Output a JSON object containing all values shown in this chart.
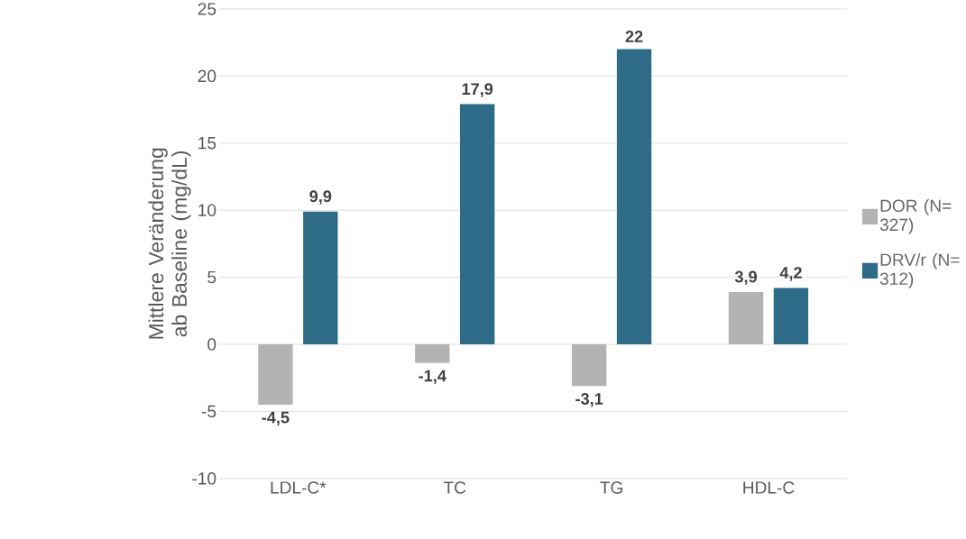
{
  "chart_data": {
    "type": "bar",
    "ylabel": "Mittlere Veränderung ab Baseline (mg/dL)",
    "categories": [
      "LDL-C*",
      "TC",
      "TG",
      "HDL-C"
    ],
    "series": [
      {
        "name": "DOR (N= 327)",
        "color": "#b3b3b3",
        "values": [
          -4.5,
          -1.4,
          -3.1,
          3.9
        ],
        "value_labels": [
          "-4,5",
          "-1,4",
          "-3,1",
          "3,9"
        ]
      },
      {
        "name": "DRV/r (N= 312)",
        "color": "#2e6b87",
        "values": [
          9.9,
          17.9,
          22,
          4.2
        ],
        "value_labels": [
          "9,9",
          "17,9",
          "22",
          "4,2"
        ]
      }
    ],
    "ylim": [
      -10,
      25
    ],
    "yticks": [
      -10,
      -5,
      0,
      5,
      10,
      15,
      20,
      25
    ],
    "grid": "y",
    "legend": "right"
  }
}
